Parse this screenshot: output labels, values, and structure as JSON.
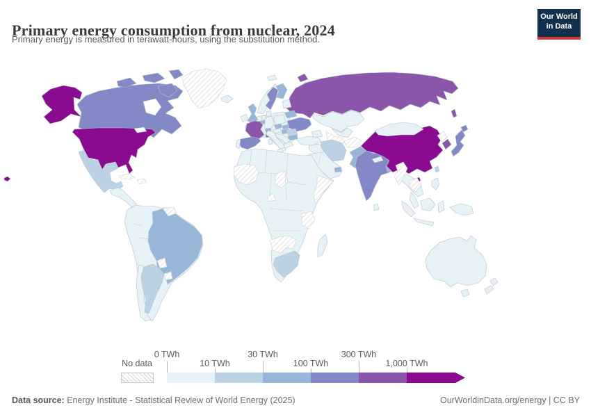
{
  "header": {
    "title": "Primary energy consumption from nuclear, 2024",
    "subtitle": "Primary energy is measured in terawatt-hours, using the substitution method.",
    "logo_line1": "Our World",
    "logo_line2": "in Data",
    "logo_bg": "#12304e",
    "logo_accent": "#d0393b"
  },
  "footer": {
    "source_label": "Data source:",
    "source_text": " Energy Institute - Statistical Review of World Energy (2025)",
    "credit_text": "OurWorldinData.org/energy | CC BY"
  },
  "legend": {
    "no_data_label": "No data",
    "ticks": [
      {
        "label": "0 TWh",
        "row": "top"
      },
      {
        "label": "10 TWh",
        "row": "bottom"
      },
      {
        "label": "30 TWh",
        "row": "top"
      },
      {
        "label": "100 TWh",
        "row": "bottom"
      },
      {
        "label": "300 TWh",
        "row": "top"
      },
      {
        "label": "1,000 TWh",
        "row": "bottom"
      }
    ]
  },
  "chart_data": {
    "type": "heatmap",
    "map_type": "world-choropleth",
    "title": "Primary energy consumption from nuclear, 2024",
    "unit": "TWh",
    "legend_position": "bottom",
    "band_labels": [
      "0–10 TWh",
      "10–30 TWh",
      "30–100 TWh",
      "100–300 TWh",
      "300–1,000 TWh",
      "1,000+ TWh"
    ],
    "band_colors": [
      "#e7f2f6",
      "#bad2e4",
      "#98b6d8",
      "#8289c6",
      "#8b55aa",
      "#8a0b8f"
    ],
    "no_data_color": "hatched",
    "countries": [
      {
        "id": "usa",
        "name": "United States",
        "band": 5
      },
      {
        "id": "alaska",
        "name": "United States (Alaska)",
        "band": 5
      },
      {
        "id": "hawaii",
        "name": "United States (Hawaii)",
        "band": 5
      },
      {
        "id": "canada",
        "name": "Canada",
        "band": 3
      },
      {
        "id": "canada-islands",
        "name": "Canada (Arctic islands)",
        "band": 3
      },
      {
        "id": "greenland",
        "name": "Greenland",
        "band": "no-data"
      },
      {
        "id": "mexico",
        "name": "Mexico",
        "band": 1
      },
      {
        "id": "central-america",
        "name": "Central America",
        "band": 0
      },
      {
        "id": "cuba",
        "name": "Cuba",
        "band": "no-data"
      },
      {
        "id": "hispaniola",
        "name": "Haiti / Dominican Republic",
        "band": "no-data"
      },
      {
        "id": "south-america",
        "name": "South America (other)",
        "band": 0
      },
      {
        "id": "brazil",
        "name": "Brazil",
        "band": 2
      },
      {
        "id": "argentina",
        "name": "Argentina",
        "band": 1
      },
      {
        "id": "chile",
        "name": "Chile",
        "band": 0
      },
      {
        "id": "paraguay",
        "name": "Paraguay",
        "band": "no-data"
      },
      {
        "id": "uruguay",
        "name": "Uruguay",
        "band": "no-data"
      },
      {
        "id": "guyanas",
        "name": "Guyana / Suriname",
        "band": "no-data"
      },
      {
        "id": "iceland",
        "name": "Iceland",
        "band": 0
      },
      {
        "id": "svalbard",
        "name": "Svalbard",
        "band": 0
      },
      {
        "id": "ireland",
        "name": "Ireland",
        "band": 0
      },
      {
        "id": "uk",
        "name": "United Kingdom",
        "band": 2
      },
      {
        "id": "norway",
        "name": "Norway",
        "band": 0
      },
      {
        "id": "sweden",
        "name": "Sweden",
        "band": 3
      },
      {
        "id": "finland",
        "name": "Finland",
        "band": 2
      },
      {
        "id": "baltics",
        "name": "Baltic states",
        "band": 0
      },
      {
        "id": "denmark",
        "name": "Denmark",
        "band": 0
      },
      {
        "id": "germany",
        "name": "Germany",
        "band": 0
      },
      {
        "id": "netherlands",
        "name": "Netherlands",
        "band": 0
      },
      {
        "id": "belgium",
        "name": "Belgium",
        "band": 2
      },
      {
        "id": "poland",
        "name": "Poland",
        "band": 0
      },
      {
        "id": "czechia",
        "name": "Czechia",
        "band": 2
      },
      {
        "id": "slovakia",
        "name": "Slovakia",
        "band": 2
      },
      {
        "id": "austria",
        "name": "Austria",
        "band": 0
      },
      {
        "id": "switzerland",
        "name": "Switzerland",
        "band": 2
      },
      {
        "id": "hungary",
        "name": "Hungary",
        "band": 2
      },
      {
        "id": "france",
        "name": "France",
        "band": 4
      },
      {
        "id": "corsica",
        "name": "France (Corsica)",
        "band": 4
      },
      {
        "id": "spain",
        "name": "Spain",
        "band": 3
      },
      {
        "id": "portugal",
        "name": "Portugal",
        "band": 0
      },
      {
        "id": "italy",
        "name": "Italy",
        "band": 0
      },
      {
        "id": "sicily",
        "name": "Italy (Sicily)",
        "band": 0
      },
      {
        "id": "sardinia",
        "name": "Italy (Sardinia)",
        "band": 0
      },
      {
        "id": "balkans",
        "name": "Balkans",
        "band": 0
      },
      {
        "id": "greece",
        "name": "Greece",
        "band": 0
      },
      {
        "id": "romania",
        "name": "Romania",
        "band": 1
      },
      {
        "id": "bulgaria",
        "name": "Bulgaria",
        "band": 2
      },
      {
        "id": "ukraine",
        "name": "Ukraine",
        "band": 3
      },
      {
        "id": "belarus",
        "name": "Belarus",
        "band": 2
      },
      {
        "id": "europe-base",
        "name": "Europe (other)",
        "band": 0
      },
      {
        "id": "russia",
        "name": "Russia",
        "band": 4
      },
      {
        "id": "sakhalin",
        "name": "Russia (Sakhalin)",
        "band": 4
      },
      {
        "id": "novaya-zemlya",
        "name": "Russia (Novaya Zemlya)",
        "band": 4
      },
      {
        "id": "kazakhstan",
        "name": "Kazakhstan",
        "band": 0
      },
      {
        "id": "uzbekistan",
        "name": "Uzbekistan",
        "band": 0
      },
      {
        "id": "turkmenistan",
        "name": "Turkmenistan",
        "band": "no-data"
      },
      {
        "id": "caucasus",
        "name": "Caucasus",
        "band": 0
      },
      {
        "id": "turkey",
        "name": "Turkey",
        "band": 0
      },
      {
        "id": "levant-iraq",
        "name": "Levant / Iraq",
        "band": 0
      },
      {
        "id": "arabia",
        "name": "Arabian Peninsula",
        "band": 0
      },
      {
        "id": "uae",
        "name": "United Arab Emirates",
        "band": 2
      },
      {
        "id": "iran",
        "name": "Iran",
        "band": 1
      },
      {
        "id": "afghanistan",
        "name": "Afghanistan",
        "band": "no-data"
      },
      {
        "id": "pakistan",
        "name": "Pakistan",
        "band": 2
      },
      {
        "id": "india",
        "name": "India",
        "band": 3
      },
      {
        "id": "nepal",
        "name": "Nepal",
        "band": 0
      },
      {
        "id": "bangladesh",
        "name": "Bangladesh",
        "band": 2
      },
      {
        "id": "sri-lanka",
        "name": "Sri Lanka",
        "band": 0
      },
      {
        "id": "china",
        "name": "China",
        "band": 5
      },
      {
        "id": "hainan",
        "name": "China (Hainan)",
        "band": 5
      },
      {
        "id": "mongolia",
        "name": "Mongolia",
        "band": 0
      },
      {
        "id": "north-korea",
        "name": "North Korea",
        "band": "no-data"
      },
      {
        "id": "south-korea",
        "name": "South Korea",
        "band": 4
      },
      {
        "id": "japan",
        "name": "Japan",
        "band": 3
      },
      {
        "id": "hokkaido",
        "name": "Japan (Hokkaido)",
        "band": 3
      },
      {
        "id": "taiwan",
        "name": "Taiwan",
        "band": 1
      },
      {
        "id": "indochina",
        "name": "Thailand / Vietnam",
        "band": 0
      },
      {
        "id": "malay",
        "name": "Malay Peninsula",
        "band": 0
      },
      {
        "id": "myanmar",
        "name": "Myanmar",
        "band": "no-data"
      },
      {
        "id": "laos-cambodia",
        "name": "Laos / Cambodia",
        "band": "no-data"
      },
      {
        "id": "philippines",
        "name": "Philippines",
        "band": 0
      },
      {
        "id": "sumatra",
        "name": "Indonesia (Sumatra)",
        "band": 0
      },
      {
        "id": "java",
        "name": "Indonesia (Java)",
        "band": 0
      },
      {
        "id": "borneo",
        "name": "Borneo",
        "band": 0
      },
      {
        "id": "sulawesi",
        "name": "Indonesia (Sulawesi)",
        "band": 0
      },
      {
        "id": "new-guinea",
        "name": "New Guinea",
        "band": 0
      },
      {
        "id": "africa",
        "name": "Africa (other)",
        "band": 0
      },
      {
        "id": "w-sahara-mali",
        "name": "Western Sahara / Mauritania / Mali",
        "band": "no-data"
      },
      {
        "id": "chad",
        "name": "Chad",
        "band": "no-data"
      },
      {
        "id": "cameroon",
        "name": "Cameroon",
        "band": "no-data"
      },
      {
        "id": "somalia",
        "name": "Somalia / Horn of Africa",
        "band": "no-data"
      },
      {
        "id": "tanzania",
        "name": "Tanzania",
        "band": "no-data"
      },
      {
        "id": "namibia-botswana",
        "name": "Namibia / Botswana / Zimbabwe",
        "band": "no-data"
      },
      {
        "id": "south-africa",
        "name": "South Africa",
        "band": 1
      },
      {
        "id": "madagascar",
        "name": "Madagascar",
        "band": 0
      },
      {
        "id": "australia",
        "name": "Australia",
        "band": 0
      },
      {
        "id": "tasmania",
        "name": "Australia (Tasmania)",
        "band": 0
      },
      {
        "id": "nz-north",
        "name": "New Zealand (North Island)",
        "band": 0
      },
      {
        "id": "nz-south",
        "name": "New Zealand (South Island)",
        "band": 0
      }
    ]
  }
}
